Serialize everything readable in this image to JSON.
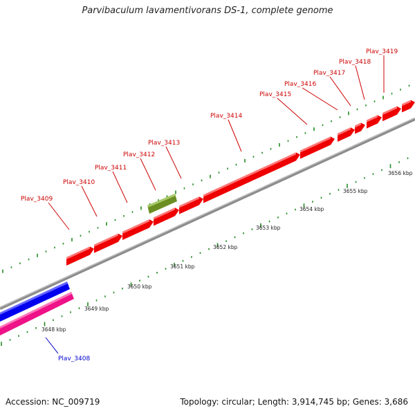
{
  "title": "Parvibaculum lavamentivorans DS-1, complete genome",
  "footer": {
    "accession": "Accession: NC_009719",
    "summary": "Topology: circular; Length: 3,914,745 bp; Genes: 3,686"
  },
  "colors": {
    "forward_gene": "#ee0000",
    "forward_label": "#cc0000",
    "green_feature": "#6b8e23",
    "blue_feature": "#0000ee",
    "pink_feature": "#ee1188",
    "backbone": "#808080",
    "tick": "#228b22",
    "reverse_label": "#0000cc"
  },
  "forward_genes": [
    {
      "label": "Plav_3409"
    },
    {
      "label": "Plav_3410"
    },
    {
      "label": "Plav_3411"
    },
    {
      "label": "Plav_3412"
    },
    {
      "label": "Plav_3413"
    },
    {
      "label": "Plav_3414"
    },
    {
      "label": "Plav_3415"
    },
    {
      "label": "Plav_3416"
    },
    {
      "label": "Plav_3417"
    },
    {
      "label": "Plav_3418"
    },
    {
      "label": "Plav_3419"
    }
  ],
  "reverse_genes": [
    {
      "label": "Plav_3408"
    }
  ],
  "ruler": [
    "3648 kbp",
    "3649 kbp",
    "3650 kbp",
    "3651 kbp",
    "3652 kbp",
    "3653 kbp",
    "3654 kbp",
    "3655 kbp",
    "3656 kbp"
  ]
}
